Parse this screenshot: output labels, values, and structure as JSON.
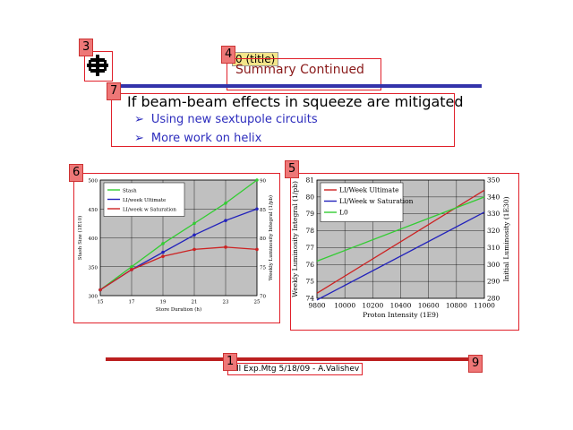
{
  "header": {
    "title": "Summary Continued",
    "title_tag": "0 (title)"
  },
  "body": {
    "main_bullet": "If beam-beam effects in squeeze are mitigated",
    "sub_bullets": [
      "Using new sextupole circuits",
      "More work on helix"
    ]
  },
  "annotation_labels": [
    "1",
    "3",
    "4",
    "5",
    "6",
    "7"
  ],
  "footer": {
    "text": "All Exp.Mtg 5/18/09 - A.Valishev",
    "page": "9"
  },
  "chart_data": [
    {
      "type": "line",
      "xlabel": "Store Duration (h)",
      "ylabel": "Stash Size (1E10)",
      "y2label": "Weekly Luminosity Integral (1/pb)",
      "x": [
        15,
        17,
        19,
        21,
        23,
        25
      ],
      "xticks": [
        15,
        17,
        19,
        21,
        23,
        25
      ],
      "yticks": [
        300,
        350,
        400,
        450,
        500
      ],
      "y2ticks": [
        70,
        75,
        80,
        85,
        90
      ],
      "ylim": [
        300,
        500
      ],
      "y2lim": [
        70,
        90
      ],
      "legend_position": "top-left",
      "grid": true,
      "series": [
        {
          "name": "Stash",
          "axis": "left",
          "color": "#33cc33",
          "values": [
            310,
            350,
            390,
            425,
            460,
            500
          ]
        },
        {
          "name": "LI/week Ultimate",
          "axis": "right",
          "color": "#2222bb",
          "values": [
            71,
            74.5,
            77.5,
            80.5,
            83,
            85
          ]
        },
        {
          "name": "LI/week w Saturation",
          "axis": "right",
          "color": "#cc2222",
          "values": [
            71,
            74.5,
            76.8,
            78,
            78.4,
            78
          ]
        }
      ]
    },
    {
      "type": "line",
      "xlabel": "Proton Intensity (1E9)",
      "ylabel": "Weekly Luminosity Integral (1/pb)",
      "y2label": "Initial Luminosity (1E30)",
      "x": [
        9800,
        11000
      ],
      "xticks": [
        9800,
        10000,
        10200,
        10400,
        10600,
        10800,
        11000
      ],
      "yticks": [
        74,
        75,
        76,
        77,
        78,
        79,
        80,
        81
      ],
      "y2ticks": [
        280,
        290,
        300,
        310,
        320,
        330,
        340,
        350
      ],
      "ylim": [
        74,
        81
      ],
      "y2lim": [
        280,
        350
      ],
      "legend_position": "top-left",
      "grid": true,
      "series": [
        {
          "name": "LI/Week Ultimate",
          "axis": "left",
          "color": "#cc2222",
          "values": [
            74.3,
            80.4
          ]
        },
        {
          "name": "LI/Week w Saturation",
          "axis": "left",
          "color": "#2222bb",
          "values": [
            73.9,
            79.1
          ]
        },
        {
          "name": "L0",
          "axis": "right",
          "color": "#33cc33",
          "values": [
            302,
            340
          ]
        }
      ]
    }
  ]
}
